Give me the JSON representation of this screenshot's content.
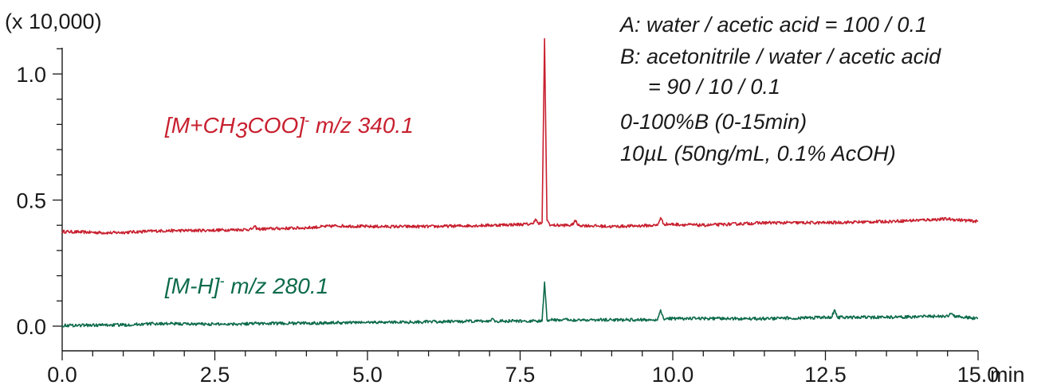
{
  "chart_data": {
    "type": "line",
    "title": "",
    "xlabel": "",
    "ylabel": "",
    "x_unit": "min",
    "y_unit": "(x 10,000)",
    "xlim": [
      0,
      15
    ],
    "ylim": [
      -0.1,
      1.1
    ],
    "x_ticks": [
      "0.0",
      "2.5",
      "5.0",
      "7.5",
      "10.0",
      "12.5",
      "15.0"
    ],
    "y_ticks": [
      "0.0",
      "0.5",
      "1.0"
    ],
    "grid": false,
    "annotations": [
      "A: water / acetic acid = 100 / 0.1",
      "B: acetonitrile / water / acetic acid",
      "= 90 / 10 / 0.1",
      "0-100%B (0-15min)",
      "10µL (50ng/mL, 0.1% AcOH)"
    ],
    "series": [
      {
        "label_prefix": "[M+CH",
        "label_sub": "3",
        "label_mid": "COO]",
        "label_sup": "-",
        "label_suffix": " m/z 340.1",
        "color": "#c8202f",
        "baseline_start": 0.375,
        "baseline_end": 0.415,
        "points": [
          [
            0,
            0.375
          ],
          [
            0.8,
            0.37
          ],
          [
            1.6,
            0.378
          ],
          [
            2.4,
            0.38
          ],
          [
            3.1,
            0.384
          ],
          [
            3.15,
            0.395
          ],
          [
            3.2,
            0.385
          ],
          [
            4.0,
            0.39
          ],
          [
            4.5,
            0.398
          ],
          [
            5.0,
            0.395
          ],
          [
            6.0,
            0.395
          ],
          [
            7.0,
            0.4
          ],
          [
            7.7,
            0.405
          ],
          [
            7.75,
            0.425
          ],
          [
            7.8,
            0.405
          ],
          [
            7.86,
            0.41
          ],
          [
            7.9,
            1.14
          ],
          [
            7.94,
            0.42
          ],
          [
            8.0,
            0.4
          ],
          [
            8.35,
            0.4
          ],
          [
            8.4,
            0.42
          ],
          [
            8.45,
            0.4
          ],
          [
            9.0,
            0.395
          ],
          [
            9.75,
            0.4
          ],
          [
            9.8,
            0.43
          ],
          [
            9.85,
            0.405
          ],
          [
            10.5,
            0.4
          ],
          [
            11.5,
            0.41
          ],
          [
            12.5,
            0.41
          ],
          [
            13.5,
            0.415
          ],
          [
            14.5,
            0.425
          ],
          [
            15.0,
            0.415
          ]
        ]
      },
      {
        "label_prefix": "[M-H]",
        "label_sub": "",
        "label_mid": "",
        "label_sup": "-",
        "label_suffix": " m/z 280.1",
        "color": "#0d6b4a",
        "baseline_start": 0.003,
        "baseline_end": 0.03,
        "points": [
          [
            0,
            0.003
          ],
          [
            1.0,
            0.005
          ],
          [
            1.5,
            0.01
          ],
          [
            2.5,
            0.008
          ],
          [
            3.1,
            0.01
          ],
          [
            3.15,
            0.015
          ],
          [
            3.2,
            0.01
          ],
          [
            4.0,
            0.012
          ],
          [
            5.0,
            0.015
          ],
          [
            6.0,
            0.017
          ],
          [
            7.0,
            0.02
          ],
          [
            7.05,
            0.03
          ],
          [
            7.1,
            0.02
          ],
          [
            7.86,
            0.02
          ],
          [
            7.9,
            0.175
          ],
          [
            7.94,
            0.025
          ],
          [
            8.4,
            0.025
          ],
          [
            9.0,
            0.025
          ],
          [
            9.75,
            0.025
          ],
          [
            9.8,
            0.065
          ],
          [
            9.85,
            0.03
          ],
          [
            10.5,
            0.03
          ],
          [
            11.5,
            0.03
          ],
          [
            12.6,
            0.035
          ],
          [
            12.65,
            0.065
          ],
          [
            12.7,
            0.035
          ],
          [
            13.5,
            0.035
          ],
          [
            14.5,
            0.04
          ],
          [
            14.55,
            0.05
          ],
          [
            14.6,
            0.04
          ],
          [
            15.0,
            0.03
          ]
        ]
      }
    ]
  }
}
